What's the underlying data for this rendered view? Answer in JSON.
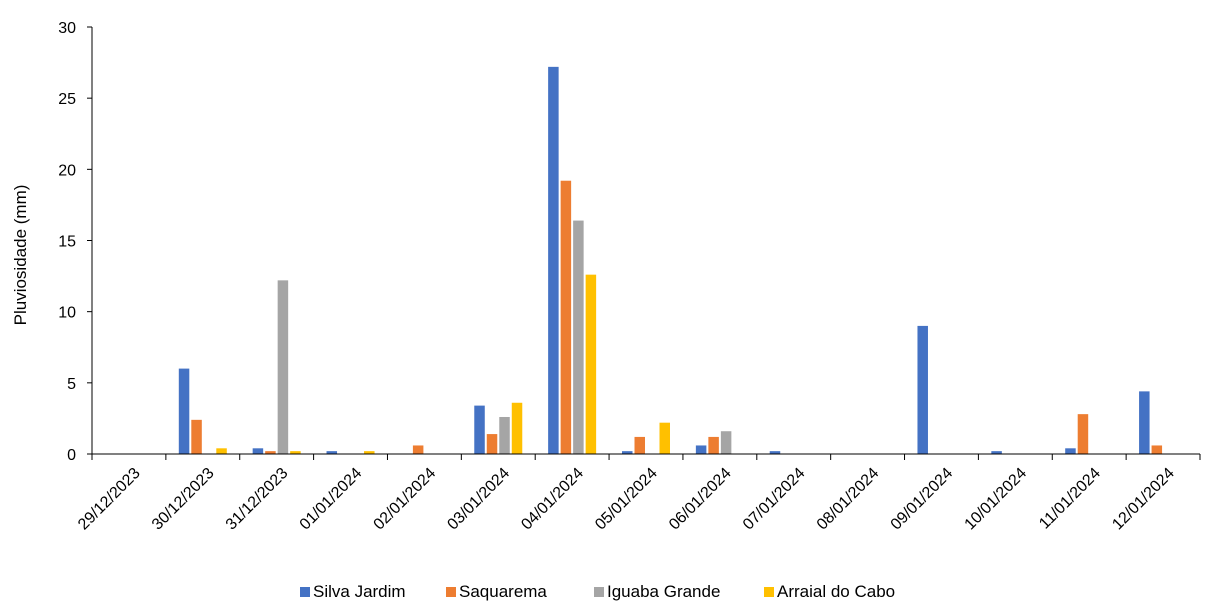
{
  "chart_data": {
    "type": "bar",
    "title": "",
    "xlabel": "",
    "ylabel": "Pluviosidade (mm)",
    "ylim": [
      0,
      30
    ],
    "yticks": [
      0,
      5,
      10,
      15,
      20,
      25,
      30
    ],
    "grid": false,
    "legend_position": "bottom",
    "categories": [
      "29/12/2023",
      "30/12/2023",
      "31/12/2023",
      "01/01/2024",
      "02/01/2024",
      "03/01/2024",
      "04/01/2024",
      "05/01/2024",
      "06/01/2024",
      "07/01/2024",
      "08/01/2024",
      "09/01/2024",
      "10/01/2024",
      "11/01/2024",
      "12/01/2024"
    ],
    "series": [
      {
        "name": "Silva Jardim",
        "color": "#4472C4",
        "values": [
          0,
          6.0,
          0.4,
          0.2,
          0,
          3.4,
          27.2,
          0.2,
          0.6,
          0.2,
          0,
          9.0,
          0.2,
          0.4,
          4.4
        ]
      },
      {
        "name": "Saquarema",
        "color": "#ED7D31",
        "values": [
          0,
          2.4,
          0.2,
          0,
          0.6,
          1.4,
          19.2,
          1.2,
          1.2,
          0,
          0,
          0,
          0,
          2.8,
          0.6
        ]
      },
      {
        "name": "Iguaba Grande",
        "color": "#A5A5A5",
        "values": [
          0,
          0,
          12.2,
          0,
          0,
          2.6,
          16.4,
          0,
          1.6,
          0,
          0,
          0,
          0,
          0,
          0
        ]
      },
      {
        "name": "Arraial do Cabo",
        "color": "#FFC000",
        "values": [
          0,
          0.4,
          0.2,
          0.2,
          0,
          3.6,
          12.6,
          2.2,
          0,
          0,
          0,
          0,
          0,
          0,
          0
        ]
      }
    ]
  }
}
